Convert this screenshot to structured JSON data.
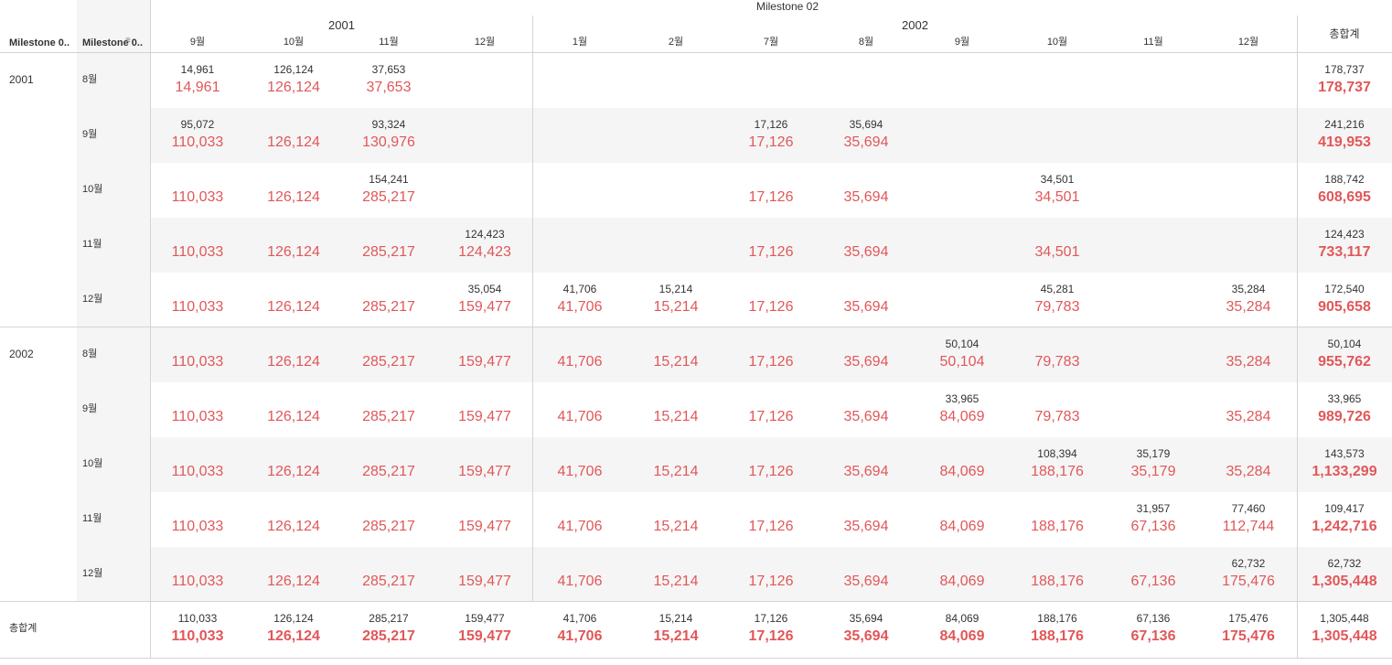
{
  "header": {
    "columns_title": "Milestone 02",
    "row_header_1": "Milestone 0..",
    "row_header_2": "Milestone 0..",
    "sort_icon": "sort-icon",
    "grand_total_label": "총합계"
  },
  "column_years": [
    {
      "label": "2001",
      "months": [
        "9월",
        "10월",
        "11월",
        "12월"
      ]
    },
    {
      "label": "2002",
      "months": [
        "1월",
        "2월",
        "7월",
        "8월",
        "9월",
        "10월",
        "11월",
        "12월"
      ]
    }
  ],
  "row_years": [
    {
      "label": "2001",
      "months": [
        "8월",
        "9월",
        "10월",
        "11월",
        "12월"
      ]
    },
    {
      "label": "2002",
      "months": [
        "8월",
        "9월",
        "10월",
        "11월",
        "12월"
      ]
    }
  ],
  "rows": [
    {
      "small": [
        "14,961",
        "126,124",
        "37,653",
        "",
        "",
        "",
        "",
        "",
        "",
        "",
        "",
        ""
      ],
      "big": [
        "14,961",
        "126,124",
        "37,653",
        "",
        "",
        "",
        "",
        "",
        "",
        "",
        "",
        ""
      ],
      "total_small": "178,737",
      "total_big": "178,737"
    },
    {
      "small": [
        "95,072",
        "",
        "93,324",
        "",
        "",
        "",
        "17,126",
        "35,694",
        "",
        "",
        "",
        ""
      ],
      "big": [
        "110,033",
        "126,124",
        "130,976",
        "",
        "",
        "",
        "17,126",
        "35,694",
        "",
        "",
        "",
        ""
      ],
      "total_small": "241,216",
      "total_big": "419,953"
    },
    {
      "small": [
        "",
        "",
        "154,241",
        "",
        "",
        "",
        "",
        "",
        "",
        "34,501",
        "",
        ""
      ],
      "big": [
        "110,033",
        "126,124",
        "285,217",
        "",
        "",
        "",
        "17,126",
        "35,694",
        "",
        "34,501",
        "",
        ""
      ],
      "total_small": "188,742",
      "total_big": "608,695"
    },
    {
      "small": [
        "",
        "",
        "",
        "124,423",
        "",
        "",
        "",
        "",
        "",
        "",
        "",
        ""
      ],
      "big": [
        "110,033",
        "126,124",
        "285,217",
        "124,423",
        "",
        "",
        "17,126",
        "35,694",
        "",
        "34,501",
        "",
        ""
      ],
      "total_small": "124,423",
      "total_big": "733,117"
    },
    {
      "small": [
        "",
        "",
        "",
        "35,054",
        "41,706",
        "15,214",
        "",
        "",
        "",
        "45,281",
        "",
        "35,284"
      ],
      "big": [
        "110,033",
        "126,124",
        "285,217",
        "159,477",
        "41,706",
        "15,214",
        "17,126",
        "35,694",
        "",
        "79,783",
        "",
        "35,284"
      ],
      "total_small": "172,540",
      "total_big": "905,658"
    },
    {
      "small": [
        "",
        "",
        "",
        "",
        "",
        "",
        "",
        "",
        "50,104",
        "",
        "",
        ""
      ],
      "big": [
        "110,033",
        "126,124",
        "285,217",
        "159,477",
        "41,706",
        "15,214",
        "17,126",
        "35,694",
        "50,104",
        "79,783",
        "",
        "35,284"
      ],
      "total_small": "50,104",
      "total_big": "955,762"
    },
    {
      "small": [
        "",
        "",
        "",
        "",
        "",
        "",
        "",
        "",
        "33,965",
        "",
        "",
        ""
      ],
      "big": [
        "110,033",
        "126,124",
        "285,217",
        "159,477",
        "41,706",
        "15,214",
        "17,126",
        "35,694",
        "84,069",
        "79,783",
        "",
        "35,284"
      ],
      "total_small": "33,965",
      "total_big": "989,726"
    },
    {
      "small": [
        "",
        "",
        "",
        "",
        "",
        "",
        "",
        "",
        "",
        "108,394",
        "35,179",
        ""
      ],
      "big": [
        "110,033",
        "126,124",
        "285,217",
        "159,477",
        "41,706",
        "15,214",
        "17,126",
        "35,694",
        "84,069",
        "188,176",
        "35,179",
        "35,284"
      ],
      "total_small": "143,573",
      "total_big": "1,133,299"
    },
    {
      "small": [
        "",
        "",
        "",
        "",
        "",
        "",
        "",
        "",
        "",
        "",
        "31,957",
        "77,460"
      ],
      "big": [
        "110,033",
        "126,124",
        "285,217",
        "159,477",
        "41,706",
        "15,214",
        "17,126",
        "35,694",
        "84,069",
        "188,176",
        "67,136",
        "112,744"
      ],
      "total_small": "109,417",
      "total_big": "1,242,716"
    },
    {
      "small": [
        "",
        "",
        "",
        "",
        "",
        "",
        "",
        "",
        "",
        "",
        "",
        "62,732"
      ],
      "big": [
        "110,033",
        "126,124",
        "285,217",
        "159,477",
        "41,706",
        "15,214",
        "17,126",
        "35,694",
        "84,069",
        "188,176",
        "67,136",
        "175,476"
      ],
      "total_small": "62,732",
      "total_big": "1,305,448"
    }
  ],
  "grand_total_row": {
    "label": "총합계",
    "small": [
      "110,033",
      "126,124",
      "285,217",
      "159,477",
      "41,706",
      "15,214",
      "17,126",
      "35,694",
      "84,069",
      "188,176",
      "67,136",
      "175,476"
    ],
    "big": [
      "110,033",
      "126,124",
      "285,217",
      "159,477",
      "41,706",
      "15,214",
      "17,126",
      "35,694",
      "84,069",
      "188,176",
      "67,136",
      "175,476"
    ],
    "total_small": "1,305,448",
    "total_big": "1,305,448"
  },
  "colors": {
    "value_red": "#e15759",
    "text": "#333333",
    "band": "#f5f5f5",
    "rule": "#d4d4d4"
  }
}
